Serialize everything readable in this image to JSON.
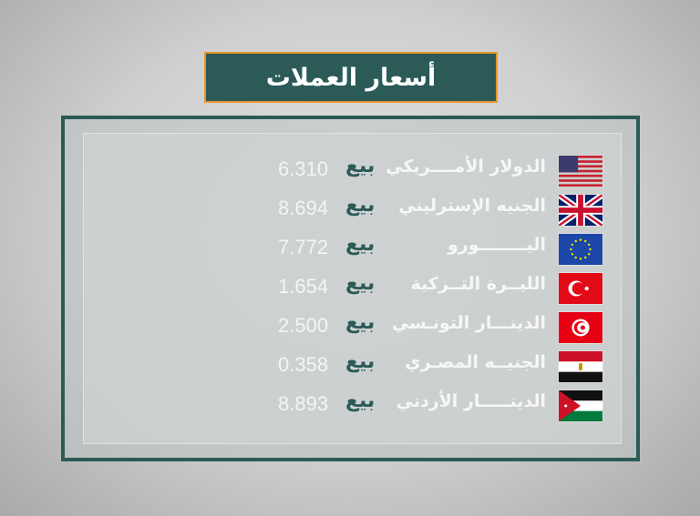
{
  "title": "أسعار العملات",
  "colors": {
    "title_bg": "#2b5a57",
    "title_border": "#e8962a",
    "sell_label": "#2b5a57",
    "text": "#f7f7f7"
  },
  "rows": [
    {
      "flag": "us-flag-icon",
      "name": "الدولار الأمــــريكي",
      "label": "بيع",
      "value": "6.310"
    },
    {
      "flag": "uk-flag-icon",
      "name": "الجنيه الإسترليني",
      "label": "بيع",
      "value": "8.694"
    },
    {
      "flag": "eu-flag-icon",
      "name": "اليــــــــورو",
      "label": "بيع",
      "value": "7.772"
    },
    {
      "flag": "turkey-flag-icon",
      "name": "الليــرة التــركية",
      "label": "بيع",
      "value": "1.654"
    },
    {
      "flag": "tunisia-flag-icon",
      "name": "الدينـــار التونـسي",
      "label": "بيع",
      "value": "2.500"
    },
    {
      "flag": "egypt-flag-icon",
      "name": "الجنيــه المصـري",
      "label": "بيع",
      "value": "0.358"
    },
    {
      "flag": "jordan-flag-icon",
      "name": "الدينـــــار الأردني",
      "label": "بيع",
      "value": "8.893"
    }
  ]
}
